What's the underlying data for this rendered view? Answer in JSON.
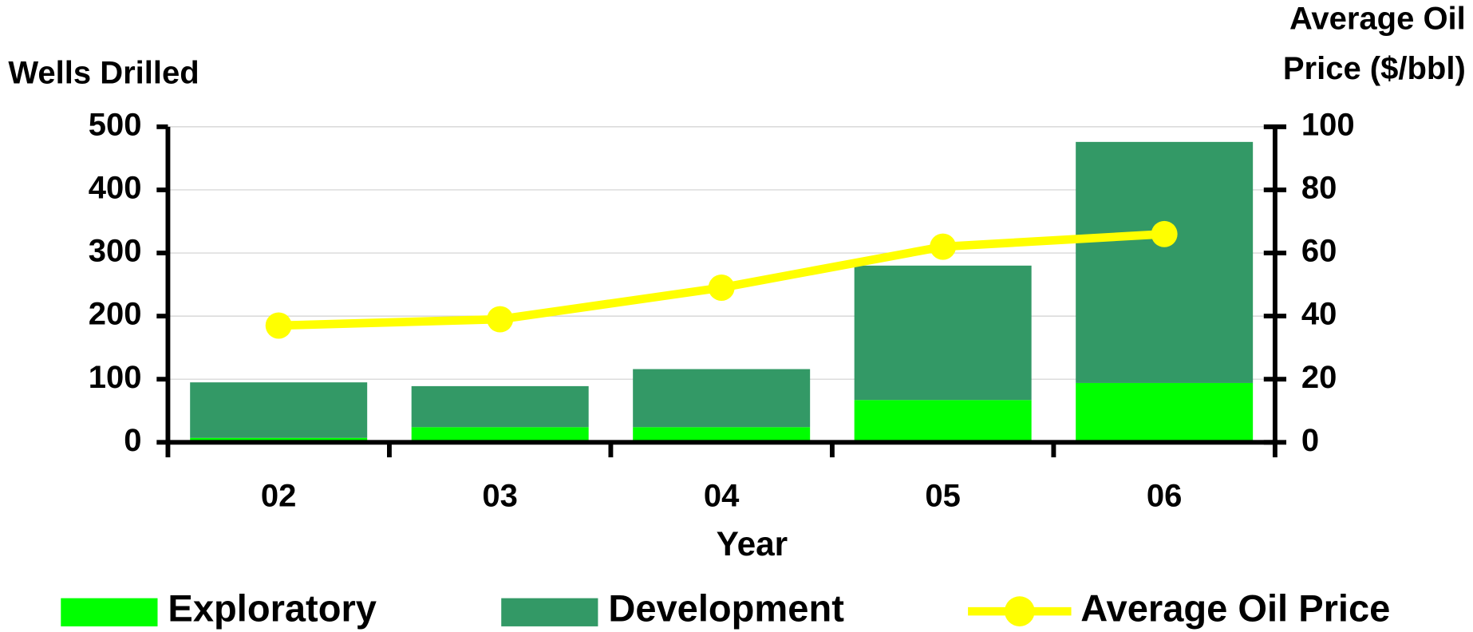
{
  "chart_data": {
    "type": "combo",
    "x_label": "Year",
    "y_label": "Wells Drilled",
    "y2_label": [
      "Average Oil",
      "Price ($/bbl)"
    ],
    "categories": [
      "02",
      "03",
      "04",
      "05",
      "06"
    ],
    "series": [
      {
        "name": "Exploratory",
        "type": "bar",
        "color": "#00ff00",
        "values": [
          7,
          24,
          24,
          67,
          94
        ]
      },
      {
        "name": "Development",
        "type": "bar",
        "color": "#339966",
        "values": [
          88,
          65,
          92,
          213,
          382
        ]
      },
      {
        "name": "Average Oil Price",
        "type": "line",
        "axis": "y2",
        "color": "#ffff00",
        "values": [
          37,
          39,
          49,
          62,
          66
        ]
      }
    ],
    "stacked": true,
    "ylim": [
      0,
      500
    ],
    "yticks": [
      0,
      100,
      200,
      300,
      400,
      500
    ],
    "y2lim": [
      0,
      100
    ],
    "y2ticks": [
      0,
      20,
      40,
      60,
      80,
      100
    ],
    "grid": true,
    "legend": "bottom"
  }
}
